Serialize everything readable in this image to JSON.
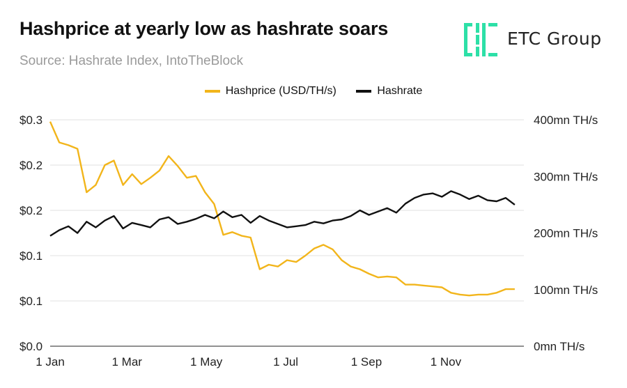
{
  "title": "Hashprice at yearly low as hashrate soars",
  "subtitle": "Source: Hashrate Index, IntoTheBlock",
  "logo": {
    "name": "ETC Group",
    "icon": "etc-group-logo-icon",
    "color": "#2de0a7"
  },
  "legend": [
    {
      "label": "Hashprice (USD/TH/s)",
      "color": "#f2b51b"
    },
    {
      "label": "Hashrate",
      "color": "#111111"
    }
  ],
  "chart_data": {
    "type": "line",
    "xlabel": "",
    "ylabel": "",
    "x_ticks": [
      "1 Jan",
      "1 Mar",
      "1 May",
      "1 Jul",
      "1 Sep",
      "1 Nov"
    ],
    "y_left_ticks": [
      "$0.0",
      "$0.1",
      "$0.1",
      "$0.2",
      "$0.2",
      "$0.3"
    ],
    "y_right_ticks": [
      "0mn TH/s",
      "100mn TH/s",
      "200mn TH/s",
      "300mn TH/s",
      "400mn TH/s"
    ],
    "y_left_range": [
      0,
      0.25
    ],
    "y_right_range": [
      0,
      400
    ],
    "grid": true,
    "legend_position": "top-center",
    "series": [
      {
        "name": "Hashprice (USD/TH/s)",
        "axis": "left",
        "color": "#f2b51b",
        "x": [
          "2023-01-01",
          "2023-01-08",
          "2023-01-15",
          "2023-01-22",
          "2023-01-29",
          "2023-02-05",
          "2023-02-12",
          "2023-02-19",
          "2023-02-26",
          "2023-03-05",
          "2023-03-12",
          "2023-03-19",
          "2023-03-26",
          "2023-04-02",
          "2023-04-09",
          "2023-04-16",
          "2023-04-23",
          "2023-04-30",
          "2023-05-07",
          "2023-05-14",
          "2023-05-21",
          "2023-05-28",
          "2023-06-04",
          "2023-06-11",
          "2023-06-18",
          "2023-06-25",
          "2023-07-02",
          "2023-07-09",
          "2023-07-16",
          "2023-07-23",
          "2023-07-30",
          "2023-08-06",
          "2023-08-13",
          "2023-08-20",
          "2023-08-27",
          "2023-09-03",
          "2023-09-10",
          "2023-09-17",
          "2023-09-24",
          "2023-10-01",
          "2023-10-08",
          "2023-10-15",
          "2023-10-22",
          "2023-10-29",
          "2023-11-05",
          "2023-11-12",
          "2023-11-19",
          "2023-11-26",
          "2023-12-03",
          "2023-12-10",
          "2023-12-17",
          "2023-12-24"
        ],
        "values": [
          0.248,
          0.225,
          0.222,
          0.218,
          0.17,
          0.178,
          0.2,
          0.205,
          0.178,
          0.19,
          0.179,
          0.186,
          0.194,
          0.21,
          0.199,
          0.186,
          0.188,
          0.17,
          0.157,
          0.123,
          0.126,
          0.122,
          0.12,
          0.085,
          0.09,
          0.088,
          0.095,
          0.093,
          0.1,
          0.108,
          0.112,
          0.107,
          0.095,
          0.088,
          0.085,
          0.08,
          0.076,
          0.077,
          0.076,
          0.068,
          0.068,
          0.067,
          0.066,
          0.065,
          0.059,
          0.057,
          0.056,
          0.057,
          0.057,
          0.059,
          0.063,
          0.063
        ]
      },
      {
        "name": "Hashrate",
        "axis": "right",
        "color": "#111111",
        "x": [
          "2023-01-01",
          "2023-01-08",
          "2023-01-15",
          "2023-01-22",
          "2023-01-29",
          "2023-02-05",
          "2023-02-12",
          "2023-02-19",
          "2023-02-26",
          "2023-03-05",
          "2023-03-12",
          "2023-03-19",
          "2023-03-26",
          "2023-04-02",
          "2023-04-09",
          "2023-04-16",
          "2023-04-23",
          "2023-04-30",
          "2023-05-07",
          "2023-05-14",
          "2023-05-21",
          "2023-05-28",
          "2023-06-04",
          "2023-06-11",
          "2023-06-18",
          "2023-06-25",
          "2023-07-02",
          "2023-07-09",
          "2023-07-16",
          "2023-07-23",
          "2023-07-30",
          "2023-08-06",
          "2023-08-13",
          "2023-08-20",
          "2023-08-27",
          "2023-09-03",
          "2023-09-10",
          "2023-09-17",
          "2023-09-24",
          "2023-10-01",
          "2023-10-08",
          "2023-10-15",
          "2023-10-22",
          "2023-10-29",
          "2023-11-05",
          "2023-11-12",
          "2023-11-19",
          "2023-11-26",
          "2023-12-03",
          "2023-12-10",
          "2023-12-17",
          "2023-12-24"
        ],
        "values": [
          195,
          205,
          212,
          200,
          220,
          210,
          222,
          230,
          208,
          218,
          214,
          210,
          224,
          228,
          216,
          220,
          225,
          232,
          226,
          238,
          228,
          232,
          218,
          230,
          222,
          216,
          210,
          212,
          214,
          220,
          217,
          222,
          224,
          230,
          240,
          232,
          238,
          244,
          236,
          252,
          262,
          268,
          270,
          264,
          274,
          268,
          260,
          266,
          258,
          256,
          262,
          250
        ]
      }
    ]
  }
}
